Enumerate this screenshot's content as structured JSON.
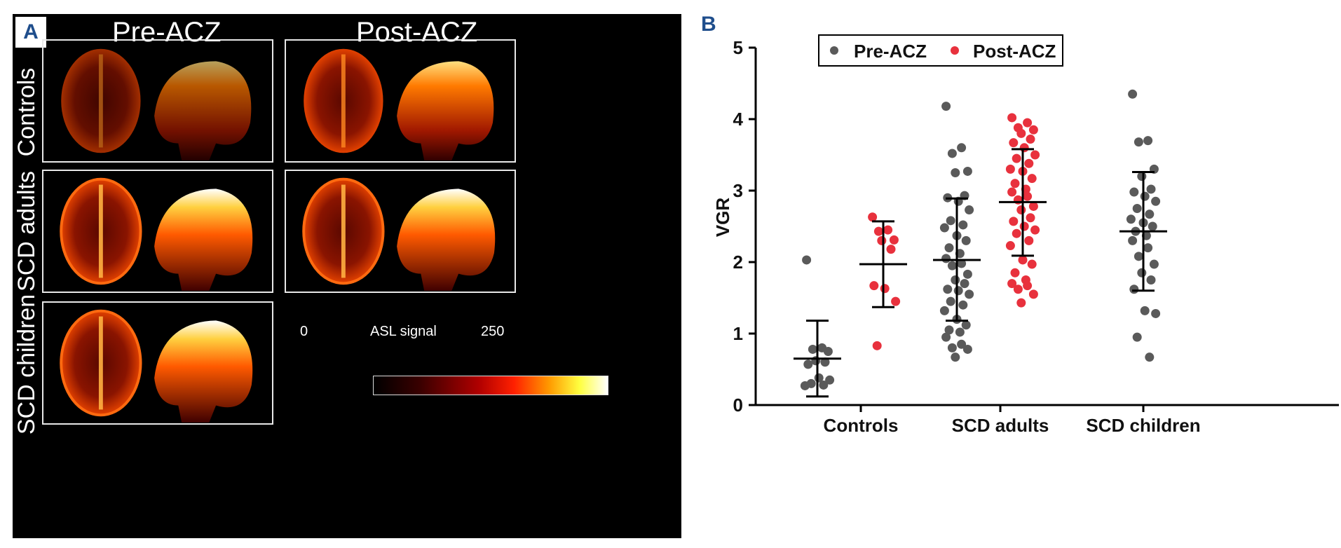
{
  "panel_a": {
    "letter": "A",
    "columns": [
      "Pre-ACZ",
      "Post-ACZ"
    ],
    "rows": [
      "Controls",
      "SCD adults",
      "SCD children"
    ],
    "colorbar": {
      "min": "0",
      "label": "ASL signal",
      "max": "250"
    }
  },
  "panel_b": {
    "letter": "B"
  },
  "chart_data": {
    "type": "scatter",
    "title": "",
    "xlabel": "",
    "ylabel": "VGR",
    "ylim": [
      0,
      5
    ],
    "yticks": [
      "0",
      "1",
      "2",
      "3",
      "4",
      "5"
    ],
    "categories": [
      "Controls",
      "SCD adults",
      "SCD children"
    ],
    "legend": {
      "placement": "top",
      "entries": [
        "Pre-ACZ",
        "Post-ACZ"
      ]
    },
    "colors": {
      "Pre-ACZ": "#5a5a5a",
      "Post-ACZ": "#e8313d"
    },
    "groups": [
      {
        "category": "Controls",
        "series": "Pre-ACZ",
        "mean": 0.65,
        "sd_low": 0.12,
        "sd_high": 1.18,
        "values": [
          2.03,
          0.8,
          0.78,
          0.75,
          0.62,
          0.6,
          0.57,
          0.38,
          0.35,
          0.3,
          0.28,
          0.27
        ]
      },
      {
        "category": "Controls",
        "series": "Post-ACZ",
        "mean": 1.97,
        "sd_low": 1.37,
        "sd_high": 2.57,
        "values": [
          2.63,
          2.45,
          2.43,
          2.31,
          2.3,
          2.18,
          1.67,
          1.63,
          1.45,
          0.83
        ]
      },
      {
        "category": "SCD adults",
        "series": "Pre-ACZ",
        "mean": 2.03,
        "sd_low": 1.18,
        "sd_high": 2.89,
        "values": [
          4.18,
          3.6,
          3.52,
          3.27,
          3.25,
          2.93,
          2.9,
          2.85,
          2.73,
          2.58,
          2.52,
          2.48,
          2.37,
          2.3,
          2.2,
          2.12,
          2.05,
          1.98,
          1.95,
          1.83,
          1.75,
          1.7,
          1.62,
          1.6,
          1.55,
          1.45,
          1.4,
          1.32,
          1.2,
          1.12,
          1.05,
          1.02,
          0.95,
          0.85,
          0.8,
          0.78,
          0.67
        ]
      },
      {
        "category": "SCD adults",
        "series": "Post-ACZ",
        "mean": 2.84,
        "sd_low": 2.09,
        "sd_high": 3.58,
        "values": [
          4.02,
          3.95,
          3.88,
          3.85,
          3.8,
          3.72,
          3.67,
          3.6,
          3.5,
          3.45,
          3.38,
          3.3,
          3.27,
          3.17,
          3.1,
          3.02,
          2.98,
          2.92,
          2.87,
          2.78,
          2.73,
          2.62,
          2.57,
          2.5,
          2.45,
          2.4,
          2.3,
          2.23,
          2.03,
          1.97,
          1.85,
          1.75,
          1.7,
          1.67,
          1.62,
          1.55,
          1.43
        ]
      },
      {
        "category": "SCD children",
        "series": "Pre-ACZ",
        "mean": 2.43,
        "sd_low": 1.6,
        "sd_high": 3.26,
        "values": [
          4.35,
          3.7,
          3.68,
          3.3,
          3.2,
          3.02,
          2.98,
          2.92,
          2.85,
          2.75,
          2.67,
          2.6,
          2.55,
          2.5,
          2.43,
          2.37,
          2.3,
          2.2,
          2.08,
          1.97,
          1.85,
          1.75,
          1.62,
          1.32,
          1.28,
          0.95,
          0.67
        ]
      }
    ]
  }
}
